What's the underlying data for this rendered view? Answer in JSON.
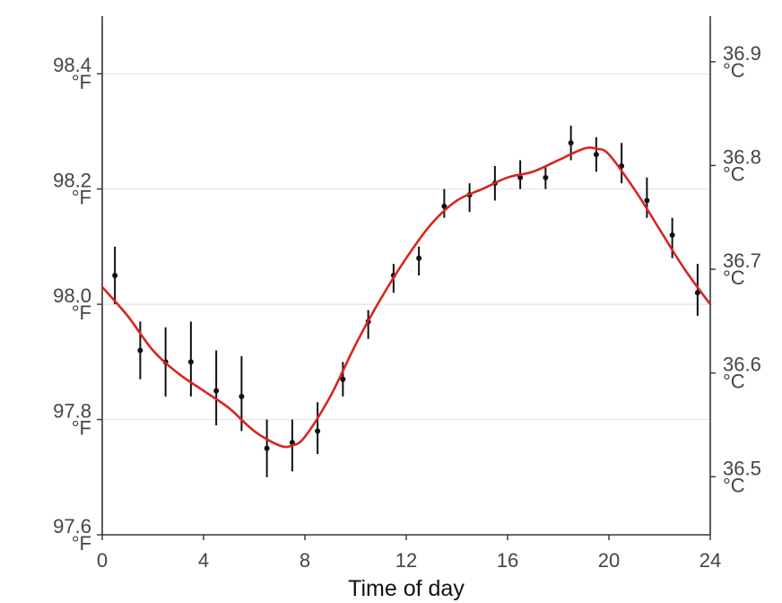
{
  "chart_data": {
    "type": "line",
    "title": "",
    "xlabel": "Time of day",
    "ylabel": "",
    "xlim": [
      0,
      24
    ],
    "ylim": [
      97.6,
      98.5
    ],
    "y2lim": [
      36.444,
      36.944
    ],
    "grid": "horizontal major lines",
    "x_ticks": [
      "0",
      "4",
      "8",
      "12",
      "16",
      "20",
      "24"
    ],
    "y_ticks": [
      {
        "value": 97.6,
        "num": "97.6",
        "unit": "°F"
      },
      {
        "value": 97.8,
        "num": "97.8",
        "unit": "°F"
      },
      {
        "value": 98.0,
        "num": "98.0",
        "unit": "°F"
      },
      {
        "value": 98.2,
        "num": "98.2",
        "unit": "°F"
      },
      {
        "value": 98.4,
        "num": "98.4",
        "unit": "°F"
      }
    ],
    "y2_ticks": [
      {
        "value": 36.5,
        "num": "36.5",
        "unit": "°C"
      },
      {
        "value": 36.6,
        "num": "36.6",
        "unit": "°C"
      },
      {
        "value": 36.7,
        "num": "36.7",
        "unit": "°C"
      },
      {
        "value": 36.8,
        "num": "36.8",
        "unit": "°C"
      },
      {
        "value": 36.9,
        "num": "36.9",
        "unit": "°C"
      }
    ],
    "points": [
      {
        "x": 0.5,
        "y": 98.05,
        "lo": 98.0,
        "hi": 98.1
      },
      {
        "x": 1.5,
        "y": 97.92,
        "lo": 97.87,
        "hi": 97.97
      },
      {
        "x": 2.5,
        "y": 97.9,
        "lo": 97.84,
        "hi": 97.96
      },
      {
        "x": 3.5,
        "y": 97.9,
        "lo": 97.84,
        "hi": 97.97
      },
      {
        "x": 4.5,
        "y": 97.85,
        "lo": 97.79,
        "hi": 97.92
      },
      {
        "x": 5.5,
        "y": 97.84,
        "lo": 97.78,
        "hi": 97.91
      },
      {
        "x": 6.5,
        "y": 97.75,
        "lo": 97.7,
        "hi": 97.8
      },
      {
        "x": 7.5,
        "y": 97.76,
        "lo": 97.71,
        "hi": 97.8
      },
      {
        "x": 8.5,
        "y": 97.78,
        "lo": 97.74,
        "hi": 97.83
      },
      {
        "x": 9.5,
        "y": 97.87,
        "lo": 97.84,
        "hi": 97.9
      },
      {
        "x": 10.5,
        "y": 97.97,
        "lo": 97.94,
        "hi": 97.99
      },
      {
        "x": 11.5,
        "y": 98.05,
        "lo": 98.02,
        "hi": 98.07
      },
      {
        "x": 12.5,
        "y": 98.08,
        "lo": 98.05,
        "hi": 98.1
      },
      {
        "x": 13.5,
        "y": 98.17,
        "lo": 98.15,
        "hi": 98.2
      },
      {
        "x": 14.5,
        "y": 98.19,
        "lo": 98.16,
        "hi": 98.21
      },
      {
        "x": 15.5,
        "y": 98.21,
        "lo": 98.18,
        "hi": 98.24
      },
      {
        "x": 16.5,
        "y": 98.22,
        "lo": 98.2,
        "hi": 98.25
      },
      {
        "x": 17.5,
        "y": 98.22,
        "lo": 98.2,
        "hi": 98.24
      },
      {
        "x": 18.5,
        "y": 98.28,
        "lo": 98.25,
        "hi": 98.31
      },
      {
        "x": 19.5,
        "y": 98.26,
        "lo": 98.23,
        "hi": 98.29
      },
      {
        "x": 20.5,
        "y": 98.24,
        "lo": 98.21,
        "hi": 98.28
      },
      {
        "x": 21.5,
        "y": 98.18,
        "lo": 98.15,
        "hi": 98.22
      },
      {
        "x": 22.5,
        "y": 98.12,
        "lo": 98.08,
        "hi": 98.15
      },
      {
        "x": 23.5,
        "y": 98.02,
        "lo": 97.98,
        "hi": 98.07
      }
    ],
    "fit_curve": {
      "x": [
        0,
        1,
        2,
        3,
        4,
        5,
        6,
        7,
        7.5,
        8,
        9,
        10,
        11,
        12,
        13,
        14,
        15,
        16,
        17,
        18,
        19,
        19.5,
        20,
        21,
        22,
        23,
        24
      ],
      "y": [
        98.03,
        97.98,
        97.92,
        97.88,
        97.85,
        97.82,
        97.78,
        97.755,
        97.755,
        97.77,
        97.84,
        97.93,
        98.01,
        98.08,
        98.14,
        98.18,
        98.2,
        98.22,
        98.23,
        98.25,
        98.27,
        98.27,
        98.26,
        98.2,
        98.13,
        98.06,
        98.0
      ]
    },
    "colors": {
      "fit_line": "#d7261e",
      "points": "#111111",
      "axis": "#333333",
      "grid": "#e4e4e4",
      "tick_text": "#444444"
    }
  }
}
